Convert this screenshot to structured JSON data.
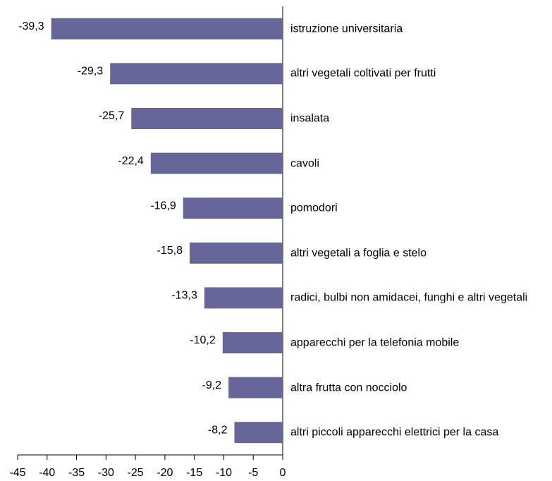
{
  "chart_data": {
    "type": "bar",
    "orientation": "horizontal",
    "categories": [
      "istruzione universitaria",
      "altri vegetali coltivati per frutti",
      "insalata",
      "cavoli",
      "pomodori",
      "altri vegetali a foglia e stelo",
      "radici, bulbi non amidacei, funghi e altri vegetali",
      "apparecchi per la telefonia mobile",
      "altra frutta con nocciolo",
      "altri piccoli apparecchi elettrici per la casa"
    ],
    "values": [
      -39.3,
      -29.3,
      -25.7,
      -22.4,
      -16.9,
      -15.8,
      -13.3,
      -10.2,
      -9.2,
      -8.2
    ],
    "value_labels": [
      "-39,3",
      "-29,3",
      "-25,7",
      "-22,4",
      "-16,9",
      "-15,8",
      "-13,3",
      "-10,2",
      "-9,2",
      "-8,2"
    ],
    "color": "#666699",
    "xlim": [
      -45,
      0
    ],
    "xticks": [
      -45,
      -40,
      -35,
      -30,
      -25,
      -20,
      -15,
      -10,
      -5,
      0
    ]
  }
}
